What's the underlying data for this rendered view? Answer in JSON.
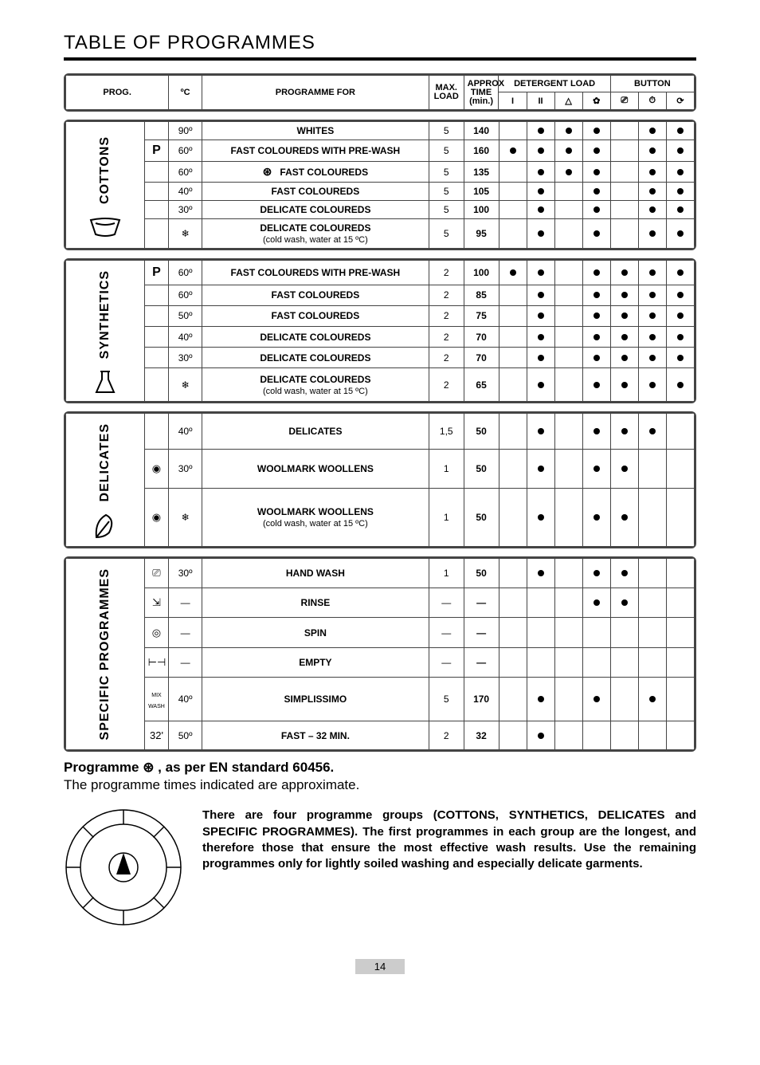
{
  "title": "TABLE OF PROGRAMMES",
  "header": {
    "prog": "PROG.",
    "degc": "ºC",
    "programme_for": "PROGRAMME FOR",
    "max_load": "MAX. LOAD",
    "approx_time": "APPROX TIME (min.)",
    "detergent_load": "DETERGENT LOAD",
    "button": "BUTTON",
    "det_cols": [
      "I",
      "II",
      "△",
      "✿"
    ],
    "btn_cols": [
      "⎚",
      "⏱",
      "⟳"
    ]
  },
  "groups": [
    {
      "name": "COTTONS",
      "group_icon": "basin",
      "rows": [
        {
          "sub": "",
          "temp": "90º",
          "for": "WHITES",
          "max": "5",
          "time": "140",
          "d": [
            false,
            true,
            true,
            true
          ],
          "b": [
            false,
            true,
            true
          ]
        },
        {
          "sub": "P",
          "temp": "60º",
          "for": "FAST COLOUREDS WITH PRE-WASH",
          "max": "5",
          "time": "160",
          "d": [
            true,
            true,
            true,
            true
          ],
          "b": [
            false,
            true,
            true
          ]
        },
        {
          "sub": "",
          "temp": "60º",
          "for": "FAST COLOUREDS",
          "star": true,
          "max": "5",
          "time": "135",
          "d": [
            false,
            true,
            true,
            true
          ],
          "b": [
            false,
            true,
            true
          ]
        },
        {
          "sub": "",
          "temp": "40º",
          "for": "FAST COLOUREDS",
          "max": "5",
          "time": "105",
          "d": [
            false,
            true,
            false,
            true
          ],
          "b": [
            false,
            true,
            true
          ]
        },
        {
          "sub": "",
          "temp": "30º",
          "for": "DELICATE COLOUREDS",
          "max": "5",
          "time": "100",
          "d": [
            false,
            true,
            false,
            true
          ],
          "b": [
            false,
            true,
            true
          ]
        },
        {
          "sub": "",
          "temp": "❄",
          "for": "DELICATE COLOUREDS",
          "for_sub": "(cold wash, water at 15 ºC)",
          "max": "5",
          "time": "95",
          "d": [
            false,
            true,
            false,
            true
          ],
          "b": [
            false,
            true,
            true
          ]
        }
      ]
    },
    {
      "name": "SYNTHETICS",
      "group_icon": "flask",
      "rows": [
        {
          "sub": "P",
          "temp": "60º",
          "for": "FAST COLOUREDS WITH PRE-WASH",
          "max": "2",
          "time": "100",
          "d": [
            true,
            true,
            false,
            true
          ],
          "b": [
            true,
            true,
            true
          ]
        },
        {
          "sub": "",
          "temp": "60º",
          "for": "FAST COLOUREDS",
          "max": "2",
          "time": "85",
          "d": [
            false,
            true,
            false,
            true
          ],
          "b": [
            true,
            true,
            true
          ]
        },
        {
          "sub": "",
          "temp": "50º",
          "for": "FAST COLOUREDS",
          "max": "2",
          "time": "75",
          "d": [
            false,
            true,
            false,
            true
          ],
          "b": [
            true,
            true,
            true
          ]
        },
        {
          "sub": "",
          "temp": "40º",
          "for": "DELICATE COLOUREDS",
          "max": "2",
          "time": "70",
          "d": [
            false,
            true,
            false,
            true
          ],
          "b": [
            true,
            true,
            true
          ]
        },
        {
          "sub": "",
          "temp": "30º",
          "for": "DELICATE COLOUREDS",
          "max": "2",
          "time": "70",
          "d": [
            false,
            true,
            false,
            true
          ],
          "b": [
            true,
            true,
            true
          ]
        },
        {
          "sub": "",
          "temp": "❄",
          "for": "DELICATE COLOUREDS",
          "for_sub": "(cold wash, water at 15 ºC)",
          "max": "2",
          "time": "65",
          "d": [
            false,
            true,
            false,
            true
          ],
          "b": [
            true,
            true,
            true
          ]
        }
      ]
    },
    {
      "name": "DELICATES",
      "group_icon": "feather",
      "rows": [
        {
          "sub": "",
          "temp": "40º",
          "for": "DELICATES",
          "max": "1,5",
          "time": "50",
          "d": [
            false,
            true,
            false,
            true
          ],
          "b": [
            true,
            true,
            false
          ]
        },
        {
          "sub": "wool",
          "temp": "30º",
          "for": "WOOLMARK WOOLLENS",
          "max": "1",
          "time": "50",
          "d": [
            false,
            true,
            false,
            true
          ],
          "b": [
            true,
            false,
            false
          ]
        },
        {
          "sub": "wool",
          "temp": "❄",
          "for": "WOOLMARK WOOLLENS",
          "for_sub": "(cold wash, water at 15 ºC)",
          "max": "1",
          "time": "50",
          "d": [
            false,
            true,
            false,
            true
          ],
          "b": [
            true,
            false,
            false
          ]
        }
      ]
    },
    {
      "name": "SPECIFIC PROGRAMMES",
      "group_icon": "",
      "rows": [
        {
          "sub": "hand",
          "temp": "30º",
          "for": "HAND WASH",
          "max": "1",
          "time": "50",
          "d": [
            false,
            true,
            false,
            true
          ],
          "b": [
            true,
            false,
            false
          ]
        },
        {
          "sub": "rinse",
          "temp": "—",
          "for": "RINSE",
          "max": "—",
          "time": "—",
          "d": [
            false,
            false,
            false,
            true
          ],
          "b": [
            true,
            false,
            false
          ]
        },
        {
          "sub": "spin",
          "temp": "—",
          "for": "SPIN",
          "max": "—",
          "time": "—",
          "d": [
            false,
            false,
            false,
            false
          ],
          "b": [
            false,
            false,
            false
          ]
        },
        {
          "sub": "empty",
          "temp": "—",
          "for": "EMPTY",
          "max": "—",
          "time": "—",
          "d": [
            false,
            false,
            false,
            false
          ],
          "b": [
            false,
            false,
            false
          ]
        },
        {
          "sub": "mix",
          "temp": "40º",
          "for": "SIMPLISSIMO",
          "max": "5",
          "time": "170",
          "d": [
            false,
            true,
            false,
            true
          ],
          "b": [
            false,
            true,
            false
          ]
        },
        {
          "sub": "32",
          "temp": "50º",
          "for": "FAST – 32 MIN.",
          "max": "2",
          "time": "32",
          "d": [
            false,
            true,
            false,
            false
          ],
          "b": [
            false,
            false,
            false
          ]
        }
      ]
    }
  ],
  "sub_icons": {
    "wool": "◉",
    "hand": "⎚",
    "rinse": "⇲",
    "spin": "◎",
    "empty": "⊢⊣",
    "mix": "MIX WASH",
    "32": "32'"
  },
  "footer": {
    "line1_a": "Programme ",
    "line1_star": "⊛",
    "line1_b": " , as per EN standard 60456.",
    "line2": "The programme times indicated are approximate.",
    "paragraph": "There are four programme groups (COTTONS, SYNTHETICS, DELICATES and SPECIFIC PROGRAMMES). The first programmes in each group are the longest, and therefore those that ensure the most effective wash results. Use the remaining programmes only for lightly soiled washing and especially delicate garments."
  },
  "page_number": "14",
  "colors": {
    "border": "#444444",
    "text": "#000000",
    "bg": "#ffffff",
    "pagenum_bg": "#cccccc"
  }
}
